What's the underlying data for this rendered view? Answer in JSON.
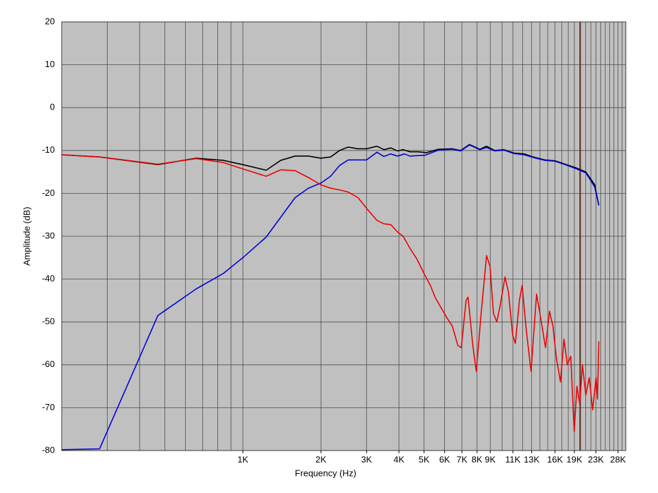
{
  "chart_data": {
    "type": "line",
    "xlabel": "Frequency (Hz)",
    "ylabel": "Amplitude (dB)",
    "x_log": true,
    "grid": true,
    "background": "#c0c0c0",
    "xlim": [
      200,
      30000
    ],
    "ylim": [
      -80,
      20
    ],
    "yticks": [
      -80,
      -70,
      -60,
      -50,
      -40,
      -30,
      -20,
      -10,
      0,
      10,
      20
    ],
    "xticks": [
      {
        "value": 1000,
        "label": "1K"
      },
      {
        "value": 2000,
        "label": "2K"
      },
      {
        "value": 3000,
        "label": "3K"
      },
      {
        "value": 4000,
        "label": "4K"
      },
      {
        "value": 5000,
        "label": "5K"
      },
      {
        "value": 6000,
        "label": "6K"
      },
      {
        "value": 7000,
        "label": "7K"
      },
      {
        "value": 8000,
        "label": "8K"
      },
      {
        "value": 9000,
        "label": "9K"
      },
      {
        "value": 11000,
        "label": "11K"
      },
      {
        "value": 13000,
        "label": "13K"
      },
      {
        "value": 16000,
        "label": "16K"
      },
      {
        "value": 19000,
        "label": "19K"
      },
      {
        "value": 23000,
        "label": "23K"
      },
      {
        "value": 28000,
        "label": "28K"
      }
    ],
    "xgrid": [
      200,
      300,
      400,
      500,
      600,
      700,
      800,
      900,
      1000,
      2000,
      3000,
      4000,
      5000,
      6000,
      7000,
      8000,
      9000,
      10000,
      11000,
      12000,
      13000,
      14000,
      15000,
      16000,
      17000,
      18000,
      19000,
      20000,
      21000,
      22000,
      23000,
      24000,
      25000,
      26000,
      27000,
      28000,
      29000,
      30000
    ],
    "marker_line": {
      "value": 20000,
      "color": "#5a2418"
    },
    "series": [
      {
        "color": "#000000",
        "x": [
          200,
          280,
          470,
          660,
          840,
          1000,
          1230,
          1400,
          1590,
          1790,
          2000,
          2180,
          2360,
          2550,
          2780,
          3000,
          3290,
          3500,
          3720,
          3950,
          4150,
          4410,
          4740,
          5100,
          5690,
          6430,
          6920,
          7480,
          8200,
          8710,
          9370,
          10140,
          11110,
          12170,
          13340,
          14610,
          16000,
          17530,
          19210,
          21040,
          22760,
          23610
        ],
        "values": [
          -11,
          -11.5,
          -13.3,
          -11.8,
          -12.3,
          -13.3,
          -14.6,
          -12.3,
          -11.3,
          -11.3,
          -11.8,
          -11.5,
          -10,
          -9.2,
          -9.6,
          -9.6,
          -9,
          -9.8,
          -9.4,
          -10.1,
          -9.8,
          -10.3,
          -10.3,
          -10.5,
          -9.7,
          -9.6,
          -10,
          -8.6,
          -9.7,
          -9,
          -10,
          -9.8,
          -10.6,
          -10.8,
          -11.6,
          -12.2,
          -12.4,
          -13.2,
          -14,
          -15,
          -18,
          -22.8
        ]
      },
      {
        "color": "#0000dd",
        "x": [
          200,
          280,
          470,
          660,
          840,
          1000,
          1230,
          1590,
          1790,
          2000,
          2180,
          2360,
          2550,
          2780,
          3000,
          3290,
          3500,
          3720,
          3950,
          4200,
          4410,
          5040,
          5690,
          6430,
          6920,
          7480,
          8200,
          8710,
          9370,
          10140,
          11110,
          12170,
          13340,
          14610,
          16000,
          17530,
          19210,
          21040,
          22760,
          23610
        ],
        "values": [
          -79.8,
          -79.6,
          -48.5,
          -42.3,
          -38.7,
          -35,
          -30.2,
          -21,
          -18.8,
          -17.6,
          -16,
          -13.5,
          -12.2,
          -12.2,
          -12.2,
          -10.4,
          -11.4,
          -10.8,
          -11.3,
          -10.8,
          -11.3,
          -11.1,
          -9.9,
          -9.7,
          -10.1,
          -8.7,
          -9.8,
          -9.3,
          -10.1,
          -9.9,
          -10.7,
          -11,
          -11.7,
          -12.3,
          -12.5,
          -13.3,
          -14.2,
          -15.2,
          -18.5,
          -22.8
        ]
      },
      {
        "color": "#ee0000",
        "x": [
          200,
          280,
          470,
          660,
          840,
          1000,
          1230,
          1400,
          1590,
          1790,
          2000,
          2180,
          2360,
          2550,
          2780,
          3000,
          3290,
          3500,
          3720,
          3950,
          4150,
          4410,
          4690,
          4980,
          5290,
          5520,
          5860,
          6120,
          6430,
          6750,
          6960,
          7260,
          7390,
          7710,
          7950,
          8300,
          8710,
          8980,
          9260,
          9540,
          9840,
          10260,
          10580,
          10980,
          11250,
          11660,
          11950,
          12400,
          12930,
          13580,
          14170,
          14700,
          15240,
          15710,
          16200,
          16800,
          17320,
          17850,
          18400,
          18970,
          19440,
          19920,
          20410,
          21040,
          21680,
          22350,
          23050,
          23330,
          23610
        ],
        "values": [
          -11,
          -11.5,
          -13.2,
          -11.9,
          -12.8,
          -14.3,
          -16,
          -14.5,
          -14.7,
          -16.3,
          -18,
          -18.8,
          -19.2,
          -19.7,
          -21,
          -23.5,
          -26.3,
          -27.1,
          -27.3,
          -29,
          -30,
          -32.8,
          -35.3,
          -38.5,
          -41.5,
          -44.3,
          -47,
          -49,
          -51,
          -55.5,
          -56,
          -45,
          -44.2,
          -55.5,
          -61.5,
          -48,
          -34.5,
          -37,
          -48,
          -50,
          -46,
          -39.5,
          -43,
          -53,
          -55,
          -45,
          -41.5,
          -52,
          -61.5,
          -43.5,
          -50,
          -56,
          -47.5,
          -51,
          -58.5,
          -64,
          -54,
          -60,
          -58,
          -75.5,
          -65,
          -69,
          -60,
          -67,
          -63,
          -70.5,
          -63,
          -68,
          -54.5
        ]
      }
    ]
  }
}
